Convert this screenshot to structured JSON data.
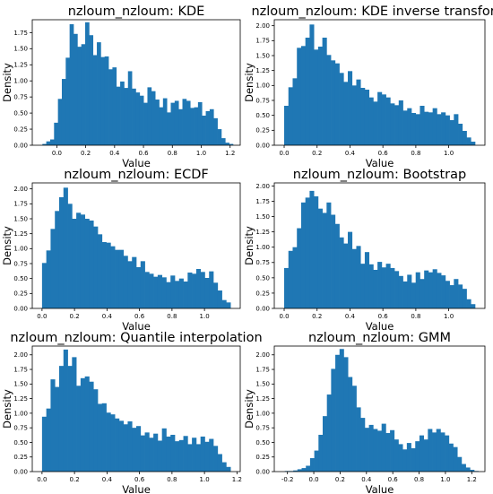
{
  "chart_data": [
    {
      "type": "bar",
      "title": "nzloum_nzloum: KDE",
      "xlabel": "Value",
      "ylabel": "Density",
      "color": "#1f77b4",
      "xlim": [
        -0.17,
        1.27
      ],
      "ylim": [
        0,
        1.95
      ],
      "xticks": [
        0.0,
        0.2,
        0.4,
        0.6,
        0.8,
        1.0,
        1.2
      ],
      "xtick_labels": [
        "0.0",
        "0.2",
        "0.4",
        "0.6",
        "0.8",
        "1.0",
        "1.2"
      ],
      "yticks": [
        0.0,
        0.25,
        0.5,
        0.75,
        1.0,
        1.25,
        1.5,
        1.75
      ],
      "ytick_labels": [
        "0.00",
        "0.25",
        "0.50",
        "0.75",
        "1.00",
        "1.25",
        "1.50",
        "1.75"
      ],
      "bin_range": [
        -0.1,
        1.22
      ],
      "values": [
        0.02,
        0.06,
        0.09,
        0.35,
        0.72,
        1.03,
        1.36,
        1.88,
        1.73,
        1.53,
        1.57,
        1.91,
        1.71,
        1.4,
        1.6,
        1.37,
        1.38,
        1.18,
        1.21,
        0.91,
        0.99,
        0.89,
        1.15,
        0.88,
        0.82,
        0.77,
        0.66,
        0.9,
        0.84,
        0.71,
        0.59,
        0.73,
        0.51,
        0.66,
        0.69,
        0.56,
        0.72,
        0.69,
        0.58,
        0.59,
        0.67,
        0.46,
        0.53,
        0.56,
        0.42,
        0.25,
        0.11,
        0.04,
        0.02
      ]
    },
    {
      "type": "bar",
      "title": "nzloum_nzloum: KDE inverse transform",
      "xlabel": "Value",
      "ylabel": "Density",
      "color": "#1f77b4",
      "xlim": [
        -0.06,
        1.22
      ],
      "ylim": [
        0,
        2.1
      ],
      "xticks": [
        0.0,
        0.2,
        0.4,
        0.6,
        0.8,
        1.0
      ],
      "xtick_labels": [
        "0.0",
        "0.2",
        "0.4",
        "0.6",
        "0.8",
        "1.0"
      ],
      "yticks": [
        0.0,
        0.25,
        0.5,
        0.75,
        1.0,
        1.25,
        1.5,
        1.75,
        2.0
      ],
      "ytick_labels": [
        "0.00",
        "0.25",
        "0.50",
        "0.75",
        "1.00",
        "1.25",
        "1.50",
        "1.75",
        "2.00"
      ],
      "bin_range": [
        0.0,
        1.16
      ],
      "values": [
        0.66,
        0.97,
        1.12,
        1.63,
        1.66,
        1.8,
        2.02,
        1.6,
        1.65,
        1.8,
        1.51,
        1.42,
        1.37,
        1.21,
        1.06,
        1.24,
        1.0,
        1.1,
        0.96,
        0.93,
        0.8,
        0.73,
        0.89,
        0.85,
        0.8,
        0.7,
        0.67,
        0.75,
        0.58,
        0.62,
        0.54,
        0.52,
        0.66,
        0.56,
        0.55,
        0.62,
        0.52,
        0.55,
        0.5,
        0.42,
        0.52,
        0.36,
        0.24,
        0.13,
        0.06
      ]
    },
    {
      "type": "bar",
      "title": "nzloum_nzloum: ECDF",
      "xlabel": "Value",
      "ylabel": "Density",
      "color": "#1f77b4",
      "xlim": [
        -0.06,
        1.22
      ],
      "ylim": [
        0,
        2.1
      ],
      "xticks": [
        0.0,
        0.2,
        0.4,
        0.6,
        0.8,
        1.0
      ],
      "xtick_labels": [
        "0.0",
        "0.2",
        "0.4",
        "0.6",
        "0.8",
        "1.0"
      ],
      "yticks": [
        0.0,
        0.25,
        0.5,
        0.75,
        1.0,
        1.25,
        1.5,
        1.75,
        2.0
      ],
      "ytick_labels": [
        "0.00",
        "0.25",
        "0.50",
        "0.75",
        "1.00",
        "1.25",
        "1.50",
        "1.75",
        "2.00"
      ],
      "bin_range": [
        0.0,
        1.16
      ],
      "values": [
        0.76,
        0.97,
        1.33,
        1.63,
        1.86,
        2.02,
        1.75,
        1.5,
        1.6,
        1.57,
        1.5,
        1.47,
        1.37,
        1.24,
        1.11,
        1.1,
        1.04,
        0.98,
        0.98,
        0.88,
        0.79,
        0.86,
        0.69,
        0.79,
        0.61,
        0.58,
        0.53,
        0.56,
        0.52,
        0.44,
        0.55,
        0.46,
        0.5,
        0.45,
        0.6,
        0.58,
        0.66,
        0.61,
        0.51,
        0.62,
        0.43,
        0.3,
        0.14,
        0.1
      ]
    },
    {
      "type": "bar",
      "title": "nzloum_nzloum: Bootstrap",
      "xlabel": "Value",
      "ylabel": "Density",
      "color": "#1f77b4",
      "xlim": [
        -0.06,
        1.22
      ],
      "ylim": [
        0,
        2.05
      ],
      "xticks": [
        0.0,
        0.2,
        0.4,
        0.6,
        0.8,
        1.0
      ],
      "xtick_labels": [
        "0.0",
        "0.2",
        "0.4",
        "0.6",
        "0.8",
        "1.0"
      ],
      "yticks": [
        0.0,
        0.25,
        0.5,
        0.75,
        1.0,
        1.25,
        1.5,
        1.75,
        2.0
      ],
      "ytick_labels": [
        "0.00",
        "0.25",
        "0.50",
        "0.75",
        "1.00",
        "1.25",
        "1.50",
        "1.75",
        "2.00"
      ],
      "bin_range": [
        0.0,
        1.16
      ],
      "values": [
        0.66,
        0.94,
        1.0,
        1.31,
        1.73,
        1.81,
        1.92,
        1.83,
        1.63,
        1.56,
        1.73,
        1.53,
        1.38,
        1.16,
        1.06,
        1.25,
        0.97,
        1.02,
        0.73,
        0.92,
        0.72,
        0.63,
        0.76,
        0.67,
        0.73,
        0.66,
        0.61,
        0.53,
        0.44,
        0.55,
        0.42,
        0.59,
        0.48,
        0.62,
        0.59,
        0.64,
        0.58,
        0.54,
        0.45,
        0.38,
        0.48,
        0.39,
        0.32,
        0.15,
        0.07
      ]
    },
    {
      "type": "bar",
      "title": "nzloum_nzloum: Quantile interpolation",
      "xlabel": "Value",
      "ylabel": "Density",
      "color": "#1f77b4",
      "xlim": [
        -0.06,
        1.22
      ],
      "ylim": [
        0,
        2.15
      ],
      "xticks": [
        0.0,
        0.2,
        0.4,
        0.6,
        0.8,
        1.0,
        1.2
      ],
      "xtick_labels": [
        "0.0",
        "0.2",
        "0.4",
        "0.6",
        "0.8",
        "1.0",
        "1.2"
      ],
      "yticks": [
        0.0,
        0.25,
        0.5,
        0.75,
        1.0,
        1.25,
        1.5,
        1.75,
        2.0
      ],
      "ytick_labels": [
        "0.00",
        "0.25",
        "0.50",
        "0.75",
        "1.00",
        "1.25",
        "1.50",
        "1.75",
        "2.00"
      ],
      "bin_range": [
        0.0,
        1.16
      ],
      "values": [
        0.94,
        1.08,
        1.58,
        1.45,
        1.81,
        2.09,
        1.81,
        1.96,
        1.47,
        1.6,
        1.63,
        1.54,
        1.41,
        1.16,
        1.17,
        1.01,
        0.98,
        0.91,
        0.87,
        0.81,
        0.86,
        0.75,
        0.78,
        0.62,
        0.67,
        0.58,
        0.65,
        0.53,
        0.74,
        0.6,
        0.63,
        0.52,
        0.54,
        0.61,
        0.47,
        0.58,
        0.47,
        0.6,
        0.51,
        0.56,
        0.44,
        0.3,
        0.16,
        0.08
      ]
    },
    {
      "type": "bar",
      "title": "nzloum_nzloum: GMM",
      "xlabel": "Value",
      "ylabel": "Density",
      "color": "#1f77b4",
      "xlim": [
        -0.3,
        1.3
      ],
      "ylim": [
        0,
        2.15
      ],
      "xticks": [
        -0.2,
        0.0,
        0.2,
        0.4,
        0.6,
        0.8,
        1.0,
        1.2
      ],
      "xtick_labels": [
        "-0.2",
        "0.0",
        "0.2",
        "0.4",
        "0.6",
        "0.8",
        "1.0",
        "1.2"
      ],
      "yticks": [
        0.0,
        0.25,
        0.5,
        0.75,
        1.0,
        1.25,
        1.5,
        1.75,
        2.0
      ],
      "ytick_labels": [
        "0.00",
        "0.25",
        "0.50",
        "0.75",
        "1.00",
        "1.25",
        "1.50",
        "1.75",
        "2.00"
      ],
      "bin_range": [
        -0.22,
        1.25
      ],
      "values": [
        0.01,
        0.01,
        0.02,
        0.04,
        0.06,
        0.1,
        0.23,
        0.36,
        0.63,
        0.95,
        1.32,
        1.76,
        2.0,
        2.1,
        1.96,
        1.62,
        1.47,
        1.1,
        0.92,
        0.75,
        0.8,
        0.73,
        0.7,
        0.82,
        0.66,
        0.71,
        0.55,
        0.47,
        0.38,
        0.49,
        0.4,
        0.52,
        0.62,
        0.55,
        0.73,
        0.67,
        0.73,
        0.67,
        0.62,
        0.48,
        0.42,
        0.25,
        0.13,
        0.07,
        0.03,
        0.01
      ]
    }
  ]
}
